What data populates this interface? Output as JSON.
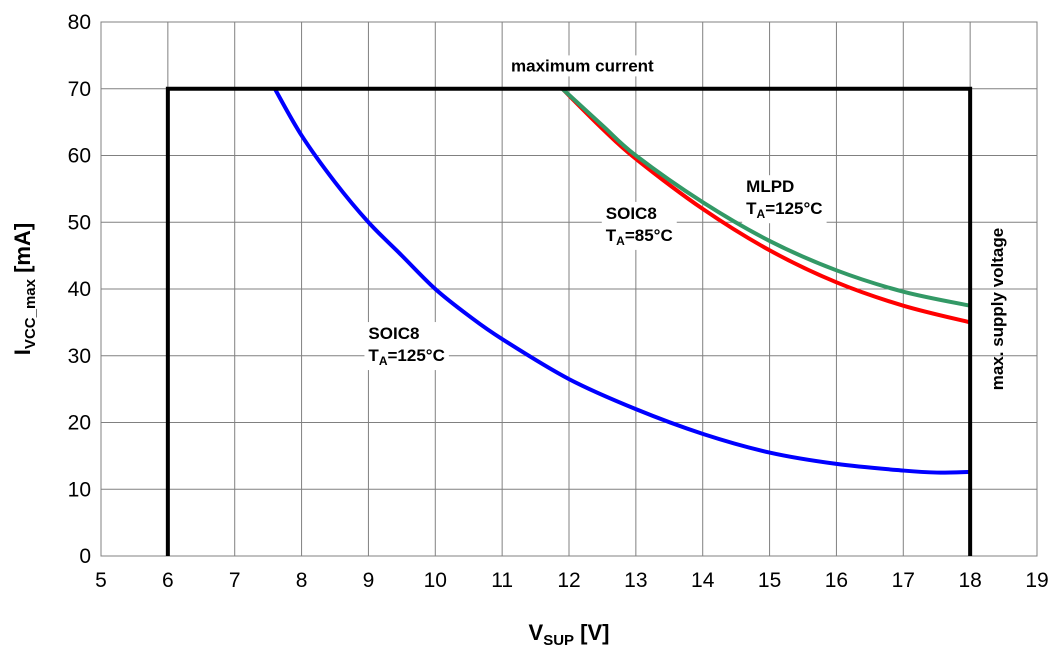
{
  "chart_data": {
    "type": "line",
    "x": {
      "label_main": "V",
      "label_sub": "SUP",
      "label_unit": " [V]",
      "range": [
        5,
        19
      ],
      "ticks": [
        5,
        6,
        7,
        8,
        9,
        10,
        11,
        12,
        13,
        14,
        15,
        16,
        17,
        18,
        19
      ]
    },
    "y": {
      "label_main": "I",
      "label_sub": "VCC_max",
      "label_unit": " [mA]",
      "range": [
        0,
        80
      ],
      "ticks": [
        0,
        10,
        20,
        30,
        40,
        50,
        60,
        70,
        80
      ]
    },
    "grid": true,
    "series": [
      {
        "color": "#0000ff",
        "points": [
          [
            7.6,
            70
          ],
          [
            8,
            63
          ],
          [
            8.5,
            56
          ],
          [
            9,
            50
          ],
          [
            9.5,
            45
          ],
          [
            10,
            40
          ],
          [
            10.5,
            36
          ],
          [
            11,
            32.5
          ],
          [
            12,
            26.5
          ],
          [
            13,
            22
          ],
          [
            14,
            18.3
          ],
          [
            15,
            15.5
          ],
          [
            16,
            13.8
          ],
          [
            17,
            12.8
          ],
          [
            17.5,
            12.5
          ],
          [
            18,
            12.6
          ]
        ]
      },
      {
        "color": "#ff0000",
        "points": [
          [
            11.9,
            70
          ],
          [
            12.5,
            64
          ],
          [
            13,
            59.5
          ],
          [
            14,
            52
          ],
          [
            15,
            45.8
          ],
          [
            16,
            41
          ],
          [
            17,
            37.5
          ],
          [
            18,
            35
          ]
        ]
      },
      {
        "color": "#339966",
        "points": [
          [
            11.9,
            70
          ],
          [
            12.5,
            64.5
          ],
          [
            13,
            60
          ],
          [
            14,
            53
          ],
          [
            15,
            47.2
          ],
          [
            16,
            42.8
          ],
          [
            17,
            39.6
          ],
          [
            18,
            37.5
          ]
        ]
      },
      {
        "color": "#000000",
        "points": [
          [
            6,
            0
          ],
          [
            6,
            70
          ],
          [
            18,
            70
          ],
          [
            18,
            0
          ]
        ]
      }
    ],
    "annotations": {
      "max_current": {
        "text": "maximum current",
        "x": 12.2,
        "y": 73.5
      },
      "max_supply": {
        "text": "max. supply voltage",
        "x": 18.4,
        "y": 37
      },
      "soic8_125": {
        "line1": "SOIC8",
        "main": "T",
        "sub": "A",
        "rest": "=125°C",
        "x": 9.0,
        "y": 32.5
      },
      "soic8_85": {
        "line1": "SOIC8",
        "main": "T",
        "sub": "A",
        "rest": "=85°C",
        "x": 12.55,
        "y": 50.5
      },
      "mlpd_125": {
        "line1": "MLPD",
        "main": "T",
        "sub": "A",
        "rest": "=125°C",
        "x": 14.65,
        "y": 54.5
      }
    }
  }
}
